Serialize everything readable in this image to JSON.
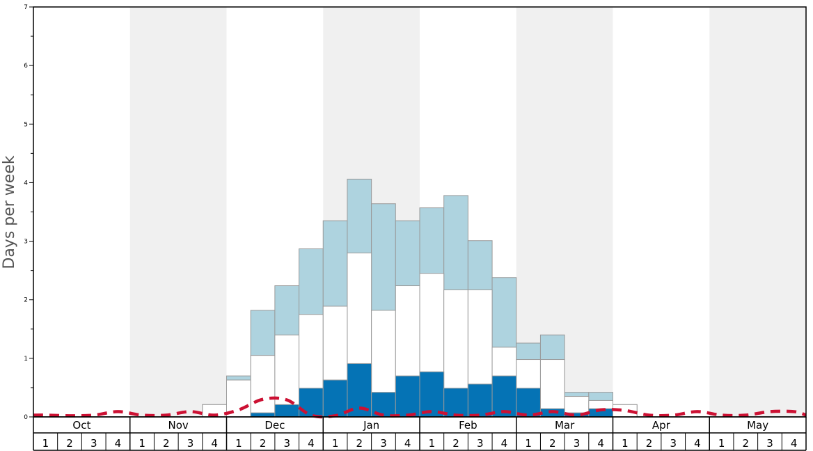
{
  "chart_data": {
    "type": "bar",
    "ylabel": "Days per week",
    "ylim": [
      0,
      7
    ],
    "yticks": [
      0,
      1,
      2,
      3,
      4,
      5,
      6,
      7
    ],
    "months": [
      "Oct",
      "Nov",
      "Dec",
      "Jan",
      "Feb",
      "Mar",
      "Apr",
      "May"
    ],
    "week_labels": [
      "1",
      "2",
      "3",
      "4"
    ],
    "shaded_months": [
      1,
      3,
      5,
      7
    ],
    "colors": {
      "top": "#aed3df",
      "middle": "#ffffff",
      "bottom": "#0573b5",
      "shade": "#f0f0f0",
      "line": "#cc1133",
      "bar_stroke": "#999999"
    },
    "series": [
      {
        "key": "top",
        "values": [
          0,
          0,
          0,
          0,
          0,
          0,
          0,
          0.21,
          0.7,
          1.82,
          2.24,
          2.87,
          3.35,
          4.06,
          3.64,
          3.35,
          3.57,
          3.78,
          3.01,
          2.38,
          1.26,
          1.4,
          0.42,
          0.42,
          0.21,
          0,
          0,
          0,
          0,
          0,
          0,
          0
        ]
      },
      {
        "key": "middle",
        "values": [
          0,
          0,
          0,
          0,
          0,
          0,
          0,
          0.21,
          0.63,
          1.05,
          1.4,
          1.75,
          1.89,
          2.8,
          1.82,
          2.24,
          2.45,
          2.17,
          2.17,
          1.19,
          0.98,
          0.98,
          0.35,
          0.28,
          0.21,
          0,
          0,
          0,
          0,
          0,
          0,
          0
        ]
      },
      {
        "key": "bottom",
        "values": [
          0,
          0,
          0,
          0,
          0,
          0,
          0,
          0,
          0,
          0.07,
          0.21,
          0.49,
          0.63,
          0.91,
          0.42,
          0.7,
          0.77,
          0.49,
          0.56,
          0.7,
          0.49,
          0.14,
          0.07,
          0.14,
          0,
          0,
          0,
          0,
          0,
          0,
          0,
          0
        ]
      },
      {
        "key": "line",
        "x": [
          -0.5,
          0,
          1,
          2,
          3,
          4,
          5,
          6,
          7,
          8,
          9,
          10,
          11,
          12,
          13,
          14,
          15,
          16,
          17,
          18,
          19,
          20,
          21,
          22,
          23,
          24,
          25,
          26,
          27,
          28,
          29,
          30,
          31,
          31.5
        ],
        "values": [
          0.03,
          0.03,
          0.02,
          0.03,
          0.09,
          0.03,
          0.03,
          0.09,
          0.03,
          0.12,
          0.3,
          0.29,
          0.03,
          0.02,
          0.15,
          0.03,
          0.03,
          0.09,
          0.03,
          0.03,
          0.09,
          0.03,
          0.09,
          0.03,
          0.12,
          0.11,
          0.03,
          0.03,
          0.09,
          0.03,
          0.03,
          0.09,
          0.09,
          0.03
        ]
      }
    ]
  }
}
